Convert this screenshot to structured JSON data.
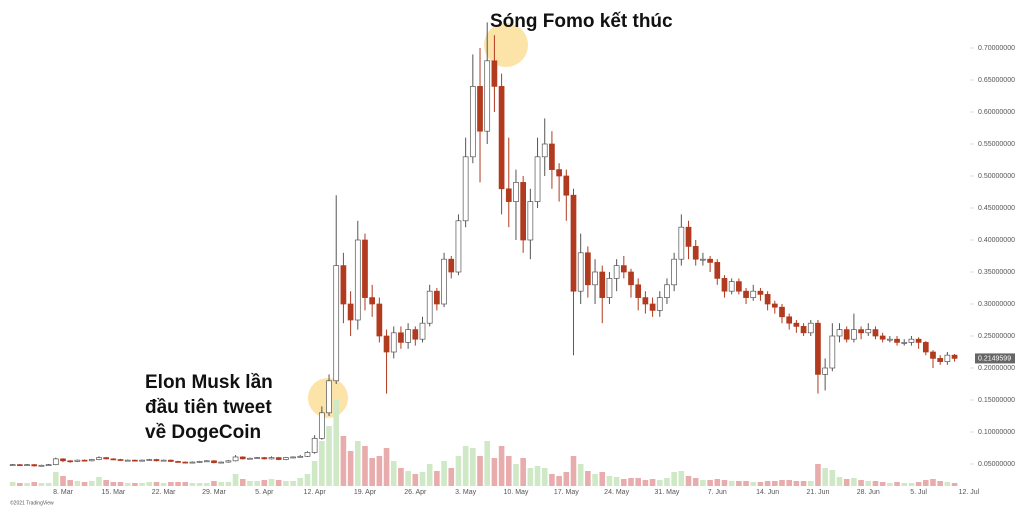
{
  "chart_data": {
    "type": "candlestick",
    "annotations": {
      "top": "Sóng Fomo kết thúc",
      "left": [
        "Elon Musk lần",
        "đầu tiên tweet",
        "về DogeCoin"
      ]
    },
    "footer": "©2021 TradingView",
    "last_price": 0.2149599,
    "up_color": "#ffffff",
    "down_color": "#b13a1f",
    "volume_up_color": "#cfe8c6",
    "volume_down_color": "#e8acac",
    "ylim": [
      0,
      0.775
    ],
    "yticks": [
      {
        "value": 0.05,
        "label": "0.05000000"
      },
      {
        "value": 0.1,
        "label": "0.10000000"
      },
      {
        "value": 0.15,
        "label": "0.15000000"
      },
      {
        "value": 0.2,
        "label": "0.20000000"
      },
      {
        "value": 0.25,
        "label": "0.25000000"
      },
      {
        "value": 0.3,
        "label": "0.30000000"
      },
      {
        "value": 0.35,
        "label": "0.35000000"
      },
      {
        "value": 0.4,
        "label": "0.40000000"
      },
      {
        "value": 0.45,
        "label": "0.45000000"
      },
      {
        "value": 0.5,
        "label": "0.50000000"
      },
      {
        "value": 0.55,
        "label": "0.55000000"
      },
      {
        "value": 0.6,
        "label": "0.60000000"
      },
      {
        "value": 0.65,
        "label": "0.65000000"
      },
      {
        "value": 0.7,
        "label": "0.70000000"
      }
    ],
    "categories": [
      null,
      null,
      null,
      null,
      null,
      null,
      null,
      "8. Mar",
      null,
      null,
      null,
      null,
      null,
      null,
      "15. Mar",
      null,
      null,
      null,
      null,
      null,
      null,
      "22. Mar",
      null,
      null,
      null,
      null,
      null,
      null,
      "29. Mar",
      null,
      null,
      null,
      null,
      null,
      null,
      "5. Apr",
      null,
      null,
      null,
      null,
      null,
      null,
      "12. Apr",
      null,
      null,
      null,
      null,
      null,
      null,
      "19. Apr",
      null,
      null,
      null,
      null,
      null,
      null,
      "26. Apr",
      null,
      null,
      null,
      null,
      null,
      null,
      "3. May",
      null,
      null,
      null,
      null,
      null,
      null,
      "10. May",
      null,
      null,
      null,
      null,
      null,
      null,
      "17. May",
      null,
      null,
      null,
      null,
      null,
      null,
      "24. May",
      null,
      null,
      null,
      null,
      null,
      null,
      "31. May",
      null,
      null,
      null,
      null,
      null,
      null,
      "7. Jun",
      null,
      null,
      null,
      null,
      null,
      null,
      "14. Jun",
      null,
      null,
      null,
      null,
      null,
      null,
      "21. Jun",
      null,
      null,
      null,
      null,
      null,
      null,
      "28. Jun",
      null,
      null,
      null,
      null,
      null,
      null,
      "5. Jul",
      null,
      null,
      null,
      null,
      null,
      null,
      "12. Jul"
    ],
    "open": [
      0.048,
      0.049,
      0.048,
      0.049,
      0.047,
      0.048,
      0.049,
      0.058,
      0.055,
      0.054,
      0.056,
      0.055,
      0.057,
      0.06,
      0.058,
      0.057,
      0.056,
      0.056,
      0.055,
      0.056,
      0.057,
      0.055,
      0.056,
      0.054,
      0.053,
      0.052,
      0.053,
      0.054,
      0.055,
      0.052,
      0.053,
      0.055,
      0.061,
      0.058,
      0.059,
      0.06,
      0.058,
      0.06,
      0.057,
      0.06,
      0.061,
      0.062,
      0.068,
      0.09,
      0.13,
      0.18,
      0.36,
      0.3,
      0.275,
      0.4,
      0.31,
      0.3,
      0.25,
      0.225,
      0.255,
      0.24,
      0.26,
      0.245,
      0.27,
      0.32,
      0.3,
      0.37,
      0.35,
      0.43,
      0.53,
      0.64,
      0.57,
      0.68,
      0.64,
      0.48,
      0.46,
      0.49,
      0.4,
      0.46,
      0.53,
      0.55,
      0.51,
      0.5,
      0.47,
      0.32,
      0.38,
      0.33,
      0.35,
      0.31,
      0.34,
      0.36,
      0.35,
      0.33,
      0.31,
      0.3,
      0.29,
      0.31,
      0.33,
      0.37,
      0.42,
      0.39,
      0.37,
      0.37,
      0.365,
      0.34,
      0.32,
      0.335,
      0.32,
      0.31,
      0.32,
      0.315,
      0.3,
      0.295,
      0.28,
      0.27,
      0.265,
      0.255,
      0.27,
      0.19,
      0.2,
      0.25,
      0.26,
      0.245,
      0.26,
      0.255,
      0.26,
      0.25,
      0.245,
      0.245,
      0.24,
      0.24,
      0.245,
      0.24,
      0.225,
      0.215,
      0.21,
      0.22,
      null,
      null
    ],
    "high": [
      0.05,
      0.05,
      0.05,
      0.05,
      0.049,
      0.05,
      0.06,
      0.059,
      0.056,
      0.057,
      0.057,
      0.058,
      0.062,
      0.061,
      0.059,
      0.058,
      0.057,
      0.057,
      0.057,
      0.058,
      0.058,
      0.057,
      0.057,
      0.055,
      0.054,
      0.054,
      0.055,
      0.056,
      0.056,
      0.054,
      0.056,
      0.064,
      0.062,
      0.06,
      0.061,
      0.061,
      0.062,
      0.061,
      0.061,
      0.062,
      0.064,
      0.07,
      0.095,
      0.14,
      0.19,
      0.47,
      0.38,
      0.32,
      0.43,
      0.41,
      0.33,
      0.31,
      0.26,
      0.265,
      0.265,
      0.27,
      0.265,
      0.28,
      0.33,
      0.325,
      0.38,
      0.375,
      0.44,
      0.56,
      0.69,
      0.7,
      0.74,
      0.72,
      0.66,
      0.56,
      0.51,
      0.5,
      0.48,
      0.56,
      0.59,
      0.57,
      0.52,
      0.51,
      0.48,
      0.41,
      0.39,
      0.37,
      0.36,
      0.35,
      0.37,
      0.375,
      0.355,
      0.34,
      0.32,
      0.31,
      0.32,
      0.34,
      0.38,
      0.44,
      0.43,
      0.4,
      0.38,
      0.375,
      0.37,
      0.345,
      0.34,
      0.34,
      0.325,
      0.33,
      0.325,
      0.32,
      0.305,
      0.3,
      0.285,
      0.275,
      0.27,
      0.275,
      0.275,
      0.215,
      0.27,
      0.27,
      0.265,
      0.285,
      0.265,
      0.27,
      0.265,
      0.255,
      0.25,
      0.25,
      0.245,
      0.25,
      0.248,
      0.242,
      0.228,
      0.22,
      0.225,
      0.222,
      null,
      null
    ],
    "low": [
      0.047,
      0.047,
      0.047,
      0.046,
      0.046,
      0.047,
      0.048,
      0.053,
      0.052,
      0.053,
      0.054,
      0.054,
      0.056,
      0.057,
      0.056,
      0.055,
      0.055,
      0.054,
      0.054,
      0.055,
      0.054,
      0.054,
      0.053,
      0.052,
      0.051,
      0.051,
      0.052,
      0.053,
      0.051,
      0.051,
      0.052,
      0.054,
      0.057,
      0.057,
      0.058,
      0.057,
      0.057,
      0.056,
      0.056,
      0.059,
      0.06,
      0.061,
      0.066,
      0.088,
      0.125,
      0.175,
      0.27,
      0.25,
      0.26,
      0.29,
      0.28,
      0.24,
      0.16,
      0.215,
      0.23,
      0.23,
      0.235,
      0.24,
      0.265,
      0.29,
      0.295,
      0.34,
      0.345,
      0.42,
      0.52,
      0.49,
      0.55,
      0.6,
      0.44,
      0.42,
      0.4,
      0.38,
      0.37,
      0.45,
      0.5,
      0.48,
      0.46,
      0.43,
      0.22,
      0.3,
      0.31,
      0.3,
      0.27,
      0.3,
      0.32,
      0.34,
      0.31,
      0.29,
      0.285,
      0.28,
      0.28,
      0.3,
      0.32,
      0.36,
      0.37,
      0.36,
      0.36,
      0.35,
      0.33,
      0.31,
      0.315,
      0.315,
      0.3,
      0.305,
      0.305,
      0.29,
      0.285,
      0.27,
      0.26,
      0.255,
      0.25,
      0.25,
      0.16,
      0.165,
      0.195,
      0.24,
      0.24,
      0.24,
      0.245,
      0.25,
      0.245,
      0.24,
      0.24,
      0.235,
      0.235,
      0.235,
      0.23,
      0.22,
      0.2,
      0.205,
      0.205,
      0.21,
      null,
      null
    ],
    "close": [
      0.049,
      0.048,
      0.049,
      0.047,
      0.048,
      0.049,
      0.058,
      0.055,
      0.054,
      0.056,
      0.055,
      0.057,
      0.06,
      0.058,
      0.057,
      0.056,
      0.056,
      0.055,
      0.056,
      0.057,
      0.055,
      0.056,
      0.054,
      0.053,
      0.052,
      0.053,
      0.054,
      0.055,
      0.052,
      0.053,
      0.055,
      0.061,
      0.058,
      0.059,
      0.06,
      0.058,
      0.06,
      0.057,
      0.06,
      0.061,
      0.062,
      0.068,
      0.09,
      0.13,
      0.18,
      0.36,
      0.3,
      0.275,
      0.4,
      0.31,
      0.3,
      0.25,
      0.225,
      0.255,
      0.24,
      0.26,
      0.245,
      0.27,
      0.32,
      0.3,
      0.37,
      0.35,
      0.43,
      0.53,
      0.64,
      0.57,
      0.68,
      0.64,
      0.48,
      0.46,
      0.49,
      0.4,
      0.46,
      0.53,
      0.55,
      0.51,
      0.5,
      0.47,
      0.32,
      0.38,
      0.33,
      0.35,
      0.31,
      0.34,
      0.36,
      0.35,
      0.33,
      0.31,
      0.3,
      0.29,
      0.31,
      0.33,
      0.37,
      0.42,
      0.39,
      0.37,
      0.37,
      0.365,
      0.34,
      0.32,
      0.335,
      0.32,
      0.31,
      0.32,
      0.315,
      0.3,
      0.295,
      0.28,
      0.27,
      0.265,
      0.255,
      0.27,
      0.19,
      0.2,
      0.25,
      0.26,
      0.245,
      0.26,
      0.255,
      0.26,
      0.25,
      0.245,
      0.245,
      0.24,
      0.24,
      0.245,
      0.24,
      0.225,
      0.215,
      0.21,
      0.22,
      0.215,
      null,
      null
    ],
    "volume": [
      4,
      3,
      3,
      4,
      3,
      3,
      14,
      10,
      6,
      5,
      4,
      5,
      9,
      6,
      4,
      4,
      3,
      3,
      3,
      4,
      4,
      3,
      4,
      4,
      4,
      3,
      3,
      3,
      5,
      4,
      4,
      12,
      7,
      5,
      5,
      6,
      7,
      6,
      5,
      5,
      8,
      12,
      25,
      45,
      60,
      86,
      50,
      35,
      45,
      40,
      28,
      30,
      38,
      25,
      18,
      15,
      12,
      14,
      22,
      15,
      25,
      18,
      30,
      40,
      38,
      30,
      45,
      28,
      40,
      30,
      22,
      28,
      18,
      20,
      18,
      12,
      10,
      14,
      30,
      22,
      15,
      12,
      14,
      10,
      9,
      7,
      8,
      8,
      6,
      7,
      6,
      8,
      14,
      15,
      10,
      8,
      6,
      6,
      7,
      6,
      5,
      5,
      5,
      4,
      4,
      5,
      5,
      6,
      6,
      5,
      5,
      5,
      22,
      18,
      16,
      9,
      7,
      8,
      6,
      5,
      5,
      4,
      3,
      4,
      3,
      3,
      4,
      6,
      7,
      5,
      4,
      3,
      null,
      null
    ]
  }
}
